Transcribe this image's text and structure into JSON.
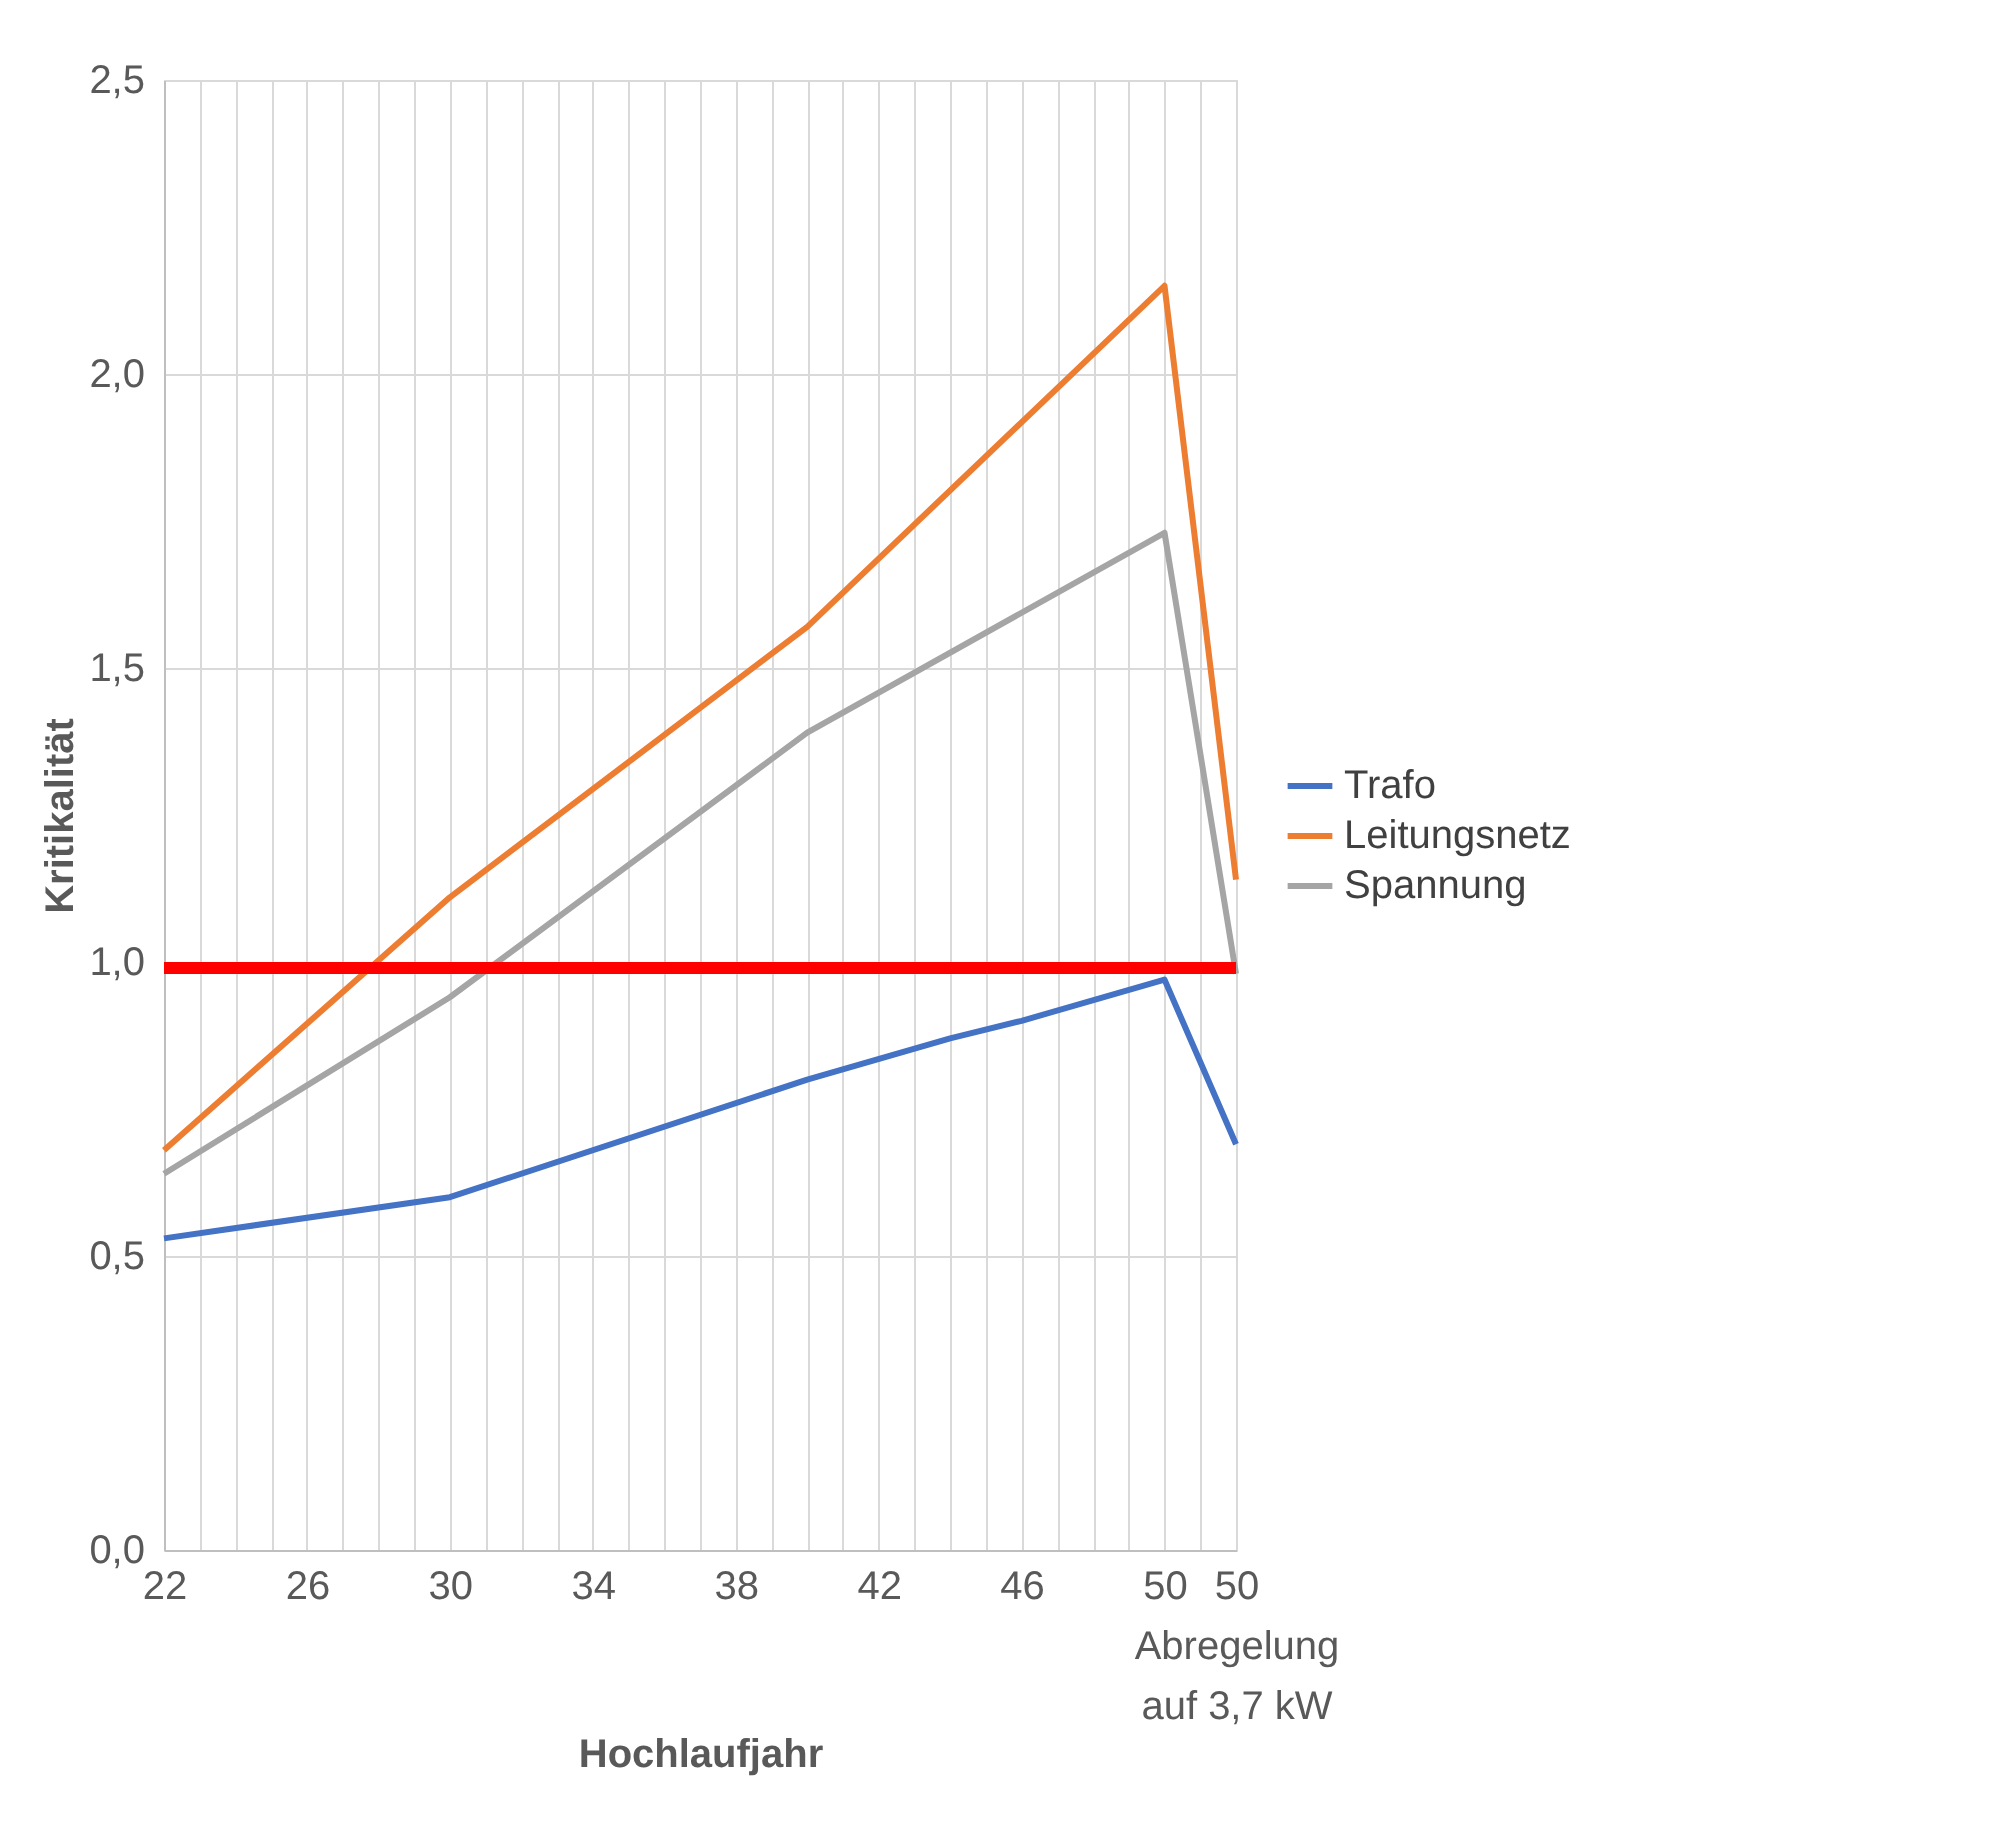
{
  "chart_data": {
    "type": "line",
    "xlabel": "Hochlaufjahr",
    "ylabel": "Kritikalität",
    "series": [
      {
        "name": "Trafo",
        "color": "#4472c4",
        "x": [
          22,
          30,
          40,
          44,
          46,
          50,
          52
        ],
        "values": [
          0.53,
          0.6,
          0.8,
          0.87,
          0.9,
          0.97,
          0.69
        ]
      },
      {
        "name": "Leitungsnetz",
        "color": "#ed7d31",
        "x": [
          22,
          30,
          40,
          50,
          52
        ],
        "values": [
          0.68,
          1.11,
          1.57,
          2.15,
          1.14
        ]
      },
      {
        "name": "Spannung",
        "color": "#a5a5a5",
        "x": [
          22,
          30,
          40,
          50,
          52
        ],
        "values": [
          0.64,
          0.94,
          1.39,
          1.73,
          0.98
        ]
      }
    ],
    "ref_lines": [
      {
        "axis": "y",
        "value": 0.99,
        "color": "#ff0000"
      }
    ],
    "xlim": [
      22,
      52
    ],
    "xticks": [
      22,
      {
        "value": 23,
        "label": null
      },
      {
        "value": 24,
        "label": null
      },
      {
        "value": 25,
        "label": null
      },
      26,
      {
        "value": 27,
        "label": null
      },
      {
        "value": 28,
        "label": null
      },
      {
        "value": 29,
        "label": null
      },
      30,
      {
        "value": 31,
        "label": null
      },
      {
        "value": 32,
        "label": null
      },
      {
        "value": 33,
        "label": null
      },
      34,
      {
        "value": 35,
        "label": null
      },
      {
        "value": 36,
        "label": null
      },
      {
        "value": 37,
        "label": null
      },
      38,
      {
        "value": 39,
        "label": null
      },
      {
        "value": 40,
        "label": null
      },
      {
        "value": 41,
        "label": null
      },
      42,
      {
        "value": 43,
        "label": null
      },
      {
        "value": 44,
        "label": null
      },
      {
        "value": 45,
        "label": null
      },
      46,
      {
        "value": 47,
        "label": null
      },
      {
        "value": 48,
        "label": null
      },
      {
        "value": 49,
        "label": null
      },
      50,
      {
        "value": 51,
        "label": null
      },
      {
        "value": 52,
        "label": "50\nAbregelung\nauf 3,7 kW"
      }
    ],
    "ylim": [
      0,
      2.5
    ],
    "yticks": [
      {
        "value": 0,
        "label": "0,0"
      },
      {
        "value": 0.5,
        "label": "0,5"
      },
      {
        "value": 1,
        "label": "1,0"
      },
      {
        "value": 1.5,
        "label": "1,5"
      },
      {
        "value": 2,
        "label": "2,0"
      },
      {
        "value": 2.5,
        "label": "2,5"
      }
    ],
    "grid": true,
    "legend": "right",
    "line_style": "solid",
    "marker": "none"
  }
}
